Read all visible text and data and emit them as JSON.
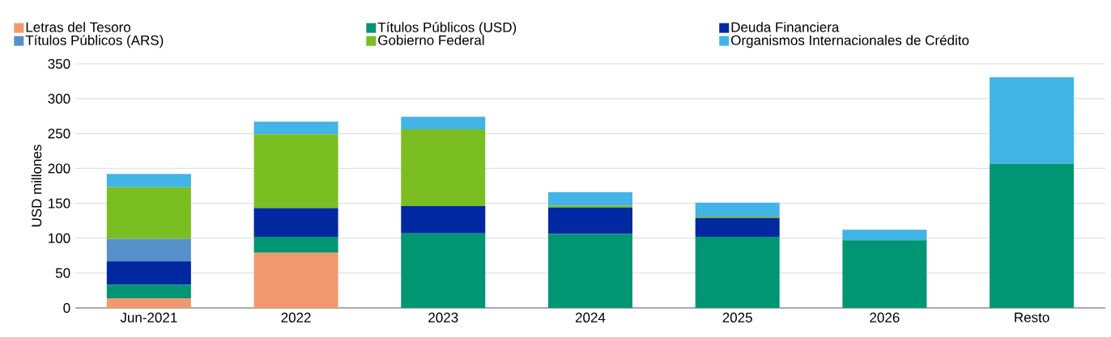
{
  "chart_data": {
    "type": "bar",
    "stacked": true,
    "ylabel": "USD millones",
    "categories": [
      "Jun-2021",
      "2022",
      "2023",
      "2024",
      "2025",
      "2026",
      "Resto"
    ],
    "series": [
      {
        "name": "Letras del Tesoro",
        "color": "#f0996f",
        "values": [
          14,
          79,
          null,
          null,
          null,
          null,
          null
        ]
      },
      {
        "name": "Títulos Públicos (USD)",
        "color": "#009673",
        "values": [
          19,
          23,
          107,
          106,
          102,
          97,
          207
        ]
      },
      {
        "name": "Deuda Financiera",
        "color": "#0028a0",
        "values": [
          34,
          41,
          39,
          38,
          27,
          null,
          null
        ]
      },
      {
        "name": "Títulos Públicos (ARS)",
        "color": "#5591c8",
        "values": [
          32,
          null,
          null,
          null,
          null,
          null,
          null
        ]
      },
      {
        "name": "Gobierno Federal",
        "color": "#7bbe21",
        "values": [
          74,
          106,
          110,
          3,
          2,
          null,
          null
        ]
      },
      {
        "name": "Organismos Internacionales de Crédito",
        "color": "#42b4e6",
        "values": [
          19,
          18,
          18,
          19,
          20,
          15,
          124
        ]
      }
    ],
    "ylim": [
      0,
      350
    ],
    "yticks": [
      0,
      50,
      100,
      150,
      200,
      250,
      300,
      350
    ],
    "grid": "y",
    "legend": "top"
  }
}
